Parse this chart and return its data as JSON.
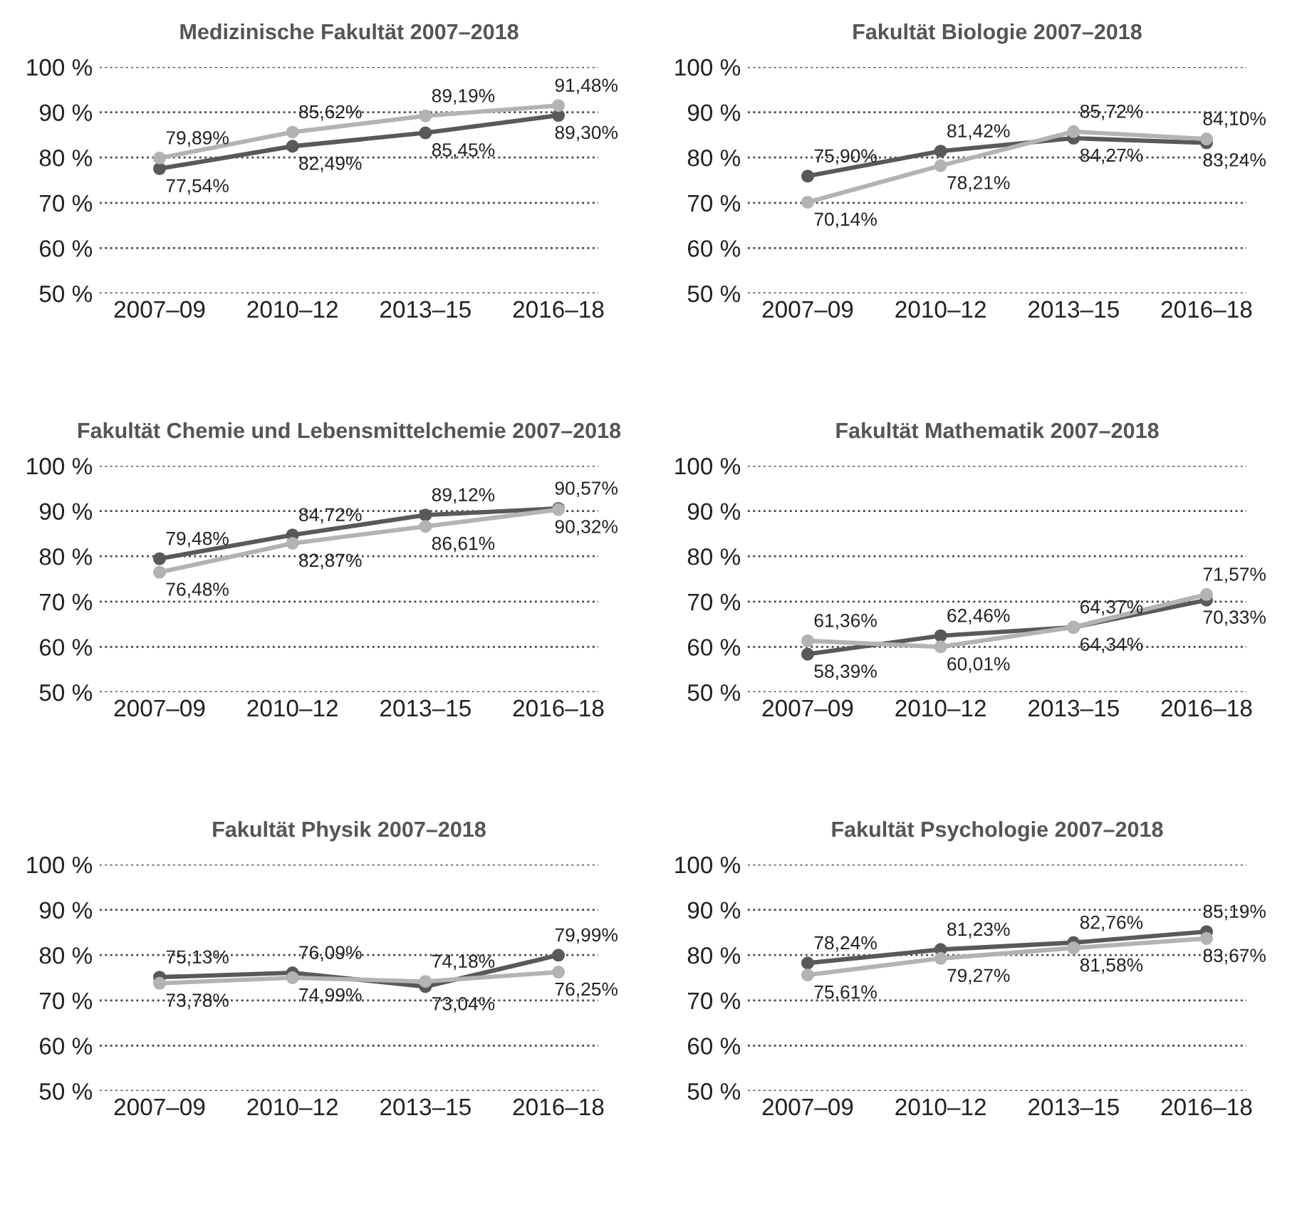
{
  "chart_data": [
    {
      "type": "line",
      "title": "Medizinische Fakultät 2007–2018",
      "categories": [
        "2007–09",
        "2010–12",
        "2013–15",
        "2016–18"
      ],
      "ylim": [
        50,
        100
      ],
      "yticks": [
        {
          "value": 50,
          "label": "50 %"
        },
        {
          "value": 60,
          "label": "60 %"
        },
        {
          "value": 70,
          "label": "70 %"
        },
        {
          "value": 80,
          "label": "80 %"
        },
        {
          "value": 90,
          "label": "90 %"
        },
        {
          "value": 100,
          "label": "100 %"
        }
      ],
      "grid": "y",
      "marker": "circle",
      "series": [
        {
          "color": "#595959",
          "values": [
            77.54,
            82.49,
            85.45,
            89.3
          ],
          "value_labels": [
            "77,54%",
            "82,49%",
            "85,45%",
            "89,30%"
          ]
        },
        {
          "color": "#b3b3b3",
          "values": [
            79.89,
            85.62,
            89.19,
            91.48
          ],
          "value_labels": [
            "79,89%",
            "85,62%",
            "89,19%",
            "91,48%"
          ]
        }
      ]
    },
    {
      "type": "line",
      "title": "Fakultät Biologie 2007–2018",
      "categories": [
        "2007–09",
        "2010–12",
        "2013–15",
        "2016–18"
      ],
      "ylim": [
        50,
        100
      ],
      "yticks": [
        {
          "value": 50,
          "label": "50 %"
        },
        {
          "value": 60,
          "label": "60 %"
        },
        {
          "value": 70,
          "label": "70 %"
        },
        {
          "value": 80,
          "label": "80 %"
        },
        {
          "value": 90,
          "label": "90 %"
        },
        {
          "value": 100,
          "label": "100 %"
        }
      ],
      "grid": "y",
      "marker": "circle",
      "series": [
        {
          "color": "#595959",
          "values": [
            75.9,
            81.42,
            84.27,
            83.24
          ],
          "value_labels": [
            "75,90%",
            "81,42%",
            "84,27%",
            "83,24%"
          ]
        },
        {
          "color": "#b3b3b3",
          "values": [
            70.14,
            78.21,
            85.72,
            84.1
          ],
          "value_labels": [
            "70,14%",
            "78,21%",
            "85,72%",
            "84,10%"
          ]
        }
      ]
    },
    {
      "type": "line",
      "title": "Fakultät Chemie und Lebensmittelchemie 2007–2018",
      "categories": [
        "2007–09",
        "2010–12",
        "2013–15",
        "2016–18"
      ],
      "ylim": [
        50,
        100
      ],
      "yticks": [
        {
          "value": 50,
          "label": "50 %"
        },
        {
          "value": 60,
          "label": "60 %"
        },
        {
          "value": 70,
          "label": "70 %"
        },
        {
          "value": 80,
          "label": "80 %"
        },
        {
          "value": 90,
          "label": "90 %"
        },
        {
          "value": 100,
          "label": "100 %"
        }
      ],
      "grid": "y",
      "marker": "circle",
      "series": [
        {
          "color": "#595959",
          "values": [
            79.48,
            84.72,
            89.12,
            90.57
          ],
          "value_labels": [
            "79,48%",
            "84,72%",
            "89,12%",
            "90,57%"
          ]
        },
        {
          "color": "#b3b3b3",
          "values": [
            76.48,
            82.87,
            86.61,
            90.32
          ],
          "value_labels": [
            "76,48%",
            "82,87%",
            "86,61%",
            "90,32%"
          ]
        }
      ]
    },
    {
      "type": "line",
      "title": "Fakultät Mathematik 2007–2018",
      "categories": [
        "2007–09",
        "2010–12",
        "2013–15",
        "2016–18"
      ],
      "ylim": [
        50,
        100
      ],
      "yticks": [
        {
          "value": 50,
          "label": "50 %"
        },
        {
          "value": 60,
          "label": "60 %"
        },
        {
          "value": 70,
          "label": "70 %"
        },
        {
          "value": 80,
          "label": "80 %"
        },
        {
          "value": 90,
          "label": "90 %"
        },
        {
          "value": 100,
          "label": "100 %"
        }
      ],
      "grid": "y",
      "marker": "circle",
      "series": [
        {
          "color": "#595959",
          "values": [
            58.39,
            62.46,
            64.34,
            70.33
          ],
          "value_labels": [
            "58,39%",
            "62,46%",
            "64,34%",
            "70,33%"
          ]
        },
        {
          "color": "#b3b3b3",
          "values": [
            61.36,
            60.01,
            64.37,
            71.57
          ],
          "value_labels": [
            "61,36%",
            "60,01%",
            "64,37%",
            "71,57%"
          ]
        }
      ]
    },
    {
      "type": "line",
      "title": "Fakultät Physik 2007–2018",
      "categories": [
        "2007–09",
        "2010–12",
        "2013–15",
        "2016–18"
      ],
      "ylim": [
        50,
        100
      ],
      "yticks": [
        {
          "value": 50,
          "label": "50 %"
        },
        {
          "value": 60,
          "label": "60 %"
        },
        {
          "value": 70,
          "label": "70 %"
        },
        {
          "value": 80,
          "label": "80 %"
        },
        {
          "value": 90,
          "label": "90 %"
        },
        {
          "value": 100,
          "label": "100 %"
        }
      ],
      "grid": "y",
      "marker": "circle",
      "series": [
        {
          "color": "#595959",
          "values": [
            75.13,
            76.09,
            73.04,
            79.99
          ],
          "value_labels": [
            "75,13%",
            "76,09%",
            "73,04%",
            "79,99%"
          ]
        },
        {
          "color": "#b3b3b3",
          "values": [
            73.78,
            74.99,
            74.18,
            76.25
          ],
          "value_labels": [
            "73,78%",
            "74,99%",
            "74,18%",
            "76,25%"
          ]
        }
      ]
    },
    {
      "type": "line",
      "title": "Fakultät Psychologie 2007–2018",
      "categories": [
        "2007–09",
        "2010–12",
        "2013–15",
        "2016–18"
      ],
      "ylim": [
        50,
        100
      ],
      "yticks": [
        {
          "value": 50,
          "label": "50 %"
        },
        {
          "value": 60,
          "label": "60 %"
        },
        {
          "value": 70,
          "label": "70 %"
        },
        {
          "value": 80,
          "label": "80 %"
        },
        {
          "value": 90,
          "label": "90 %"
        },
        {
          "value": 100,
          "label": "100 %"
        }
      ],
      "grid": "y",
      "marker": "circle",
      "series": [
        {
          "color": "#595959",
          "values": [
            78.24,
            81.23,
            82.76,
            85.19
          ],
          "value_labels": [
            "78,24%",
            "81,23%",
            "82,76%",
            "85,19%"
          ]
        },
        {
          "color": "#b3b3b3",
          "values": [
            75.61,
            79.27,
            81.58,
            83.67
          ],
          "value_labels": [
            "75,61%",
            "79,27%",
            "81,58%",
            "83,67%"
          ]
        }
      ]
    }
  ]
}
